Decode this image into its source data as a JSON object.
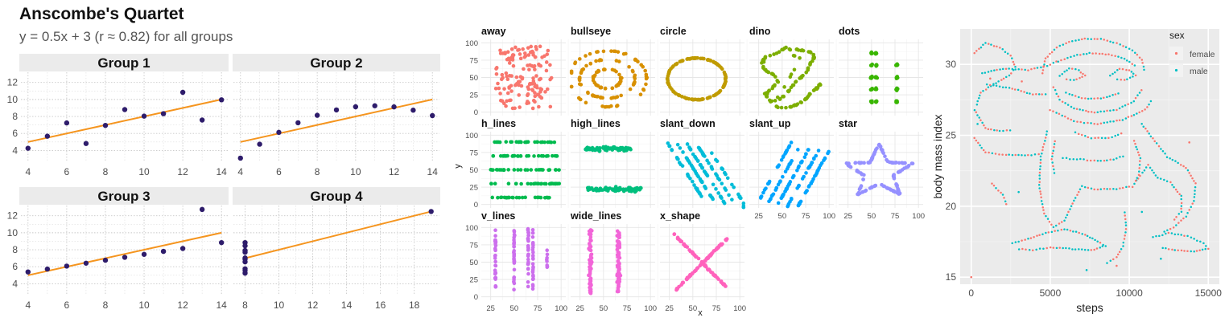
{
  "anscombe": {
    "title": "Anscombe's Quartet",
    "subtitle": "y = 0.5x + 3 (r ≈ 0.82) for all groups",
    "fit": {
      "slope": 0.5,
      "intercept": 3
    },
    "colors": {
      "point": "#2e1c6b",
      "line": "#f5951f",
      "strip": "#ebebeb"
    },
    "groups": [
      {
        "name": "Group 1",
        "x": [
          4,
          5,
          6,
          7,
          8,
          9,
          10,
          11,
          12,
          13,
          14
        ],
        "y": [
          4.26,
          5.68,
          7.24,
          4.82,
          6.95,
          8.81,
          8.04,
          8.33,
          10.84,
          7.58,
          9.96
        ],
        "xlim": [
          3.8,
          14.2
        ],
        "xticks": [
          4,
          6,
          8,
          10,
          12,
          14
        ],
        "line": [
          4,
          14
        ]
      },
      {
        "name": "Group 2",
        "x": [
          4,
          5,
          6,
          7,
          8,
          9,
          10,
          11,
          12,
          13,
          14
        ],
        "y": [
          3.1,
          4.74,
          6.13,
          7.26,
          8.14,
          8.77,
          9.14,
          9.26,
          9.13,
          8.74,
          8.1
        ],
        "xlim": [
          3.8,
          14.2
        ],
        "xticks": [
          4,
          6,
          8,
          10,
          12,
          14
        ],
        "line": [
          4,
          14
        ]
      },
      {
        "name": "Group 3",
        "x": [
          4,
          5,
          6,
          7,
          8,
          9,
          10,
          11,
          12,
          13,
          14
        ],
        "y": [
          5.39,
          5.73,
          6.08,
          6.42,
          6.77,
          7.11,
          7.46,
          7.81,
          8.15,
          12.74,
          8.84
        ],
        "xlim": [
          3.8,
          14.2
        ],
        "xticks": [
          4,
          6,
          8,
          10,
          12,
          14
        ],
        "line": [
          4,
          14
        ]
      },
      {
        "name": "Group 4",
        "x": [
          8,
          8,
          8,
          8,
          8,
          8,
          8,
          8,
          8,
          8,
          19
        ],
        "y": [
          6.58,
          5.76,
          7.71,
          8.84,
          8.47,
          7.04,
          5.25,
          5.56,
          7.91,
          6.89,
          12.5
        ],
        "xlim": [
          7.5,
          19.3
        ],
        "xticks": [
          8,
          10,
          12,
          14,
          16,
          18
        ],
        "line": [
          8,
          19
        ]
      }
    ],
    "ylim": [
      3,
      13.2
    ],
    "yticks": [
      4,
      6,
      8,
      10,
      12
    ]
  },
  "datasaurus": {
    "xlabel": "x",
    "ylabel": "y",
    "xticks": [
      25,
      50,
      75,
      100
    ],
    "yticks": [
      0,
      25,
      50,
      75,
      100
    ],
    "xlim": [
      15,
      105
    ],
    "ylim": [
      -5,
      105
    ],
    "panels": [
      {
        "name": "away",
        "color": "#f8766d"
      },
      {
        "name": "bullseye",
        "color": "#d89000"
      },
      {
        "name": "circle",
        "color": "#c09b00"
      },
      {
        "name": "dino",
        "color": "#7cae00"
      },
      {
        "name": "dots",
        "color": "#39b600"
      },
      {
        "name": "h_lines",
        "color": "#00bb4e"
      },
      {
        "name": "high_lines",
        "color": "#00bf7d"
      },
      {
        "name": "slant_down",
        "color": "#00bcd8"
      },
      {
        "name": "slant_up",
        "color": "#00a5ff"
      },
      {
        "name": "star",
        "color": "#9590ff"
      },
      {
        "name": "v_lines",
        "color": "#cc6fed"
      },
      {
        "name": "wide_lines",
        "color": "#f265d8"
      },
      {
        "name": "x_shape",
        "color": "#ff62bc"
      }
    ]
  },
  "gorilla": {
    "xlabel": "steps",
    "ylabel": "body mass index",
    "xticks": [
      0,
      5000,
      10000,
      15000
    ],
    "yticks": [
      15,
      20,
      25,
      30
    ],
    "xlim": [
      -700,
      15700
    ],
    "ylim": [
      14.5,
      32.5
    ],
    "legend_title": "sex",
    "legend": [
      {
        "label": "female",
        "color": "#f8766d"
      },
      {
        "label": "male",
        "color": "#00bfc4"
      }
    ],
    "colors": {
      "panel": "#ebebeb",
      "grid": "#ffffff"
    }
  }
}
